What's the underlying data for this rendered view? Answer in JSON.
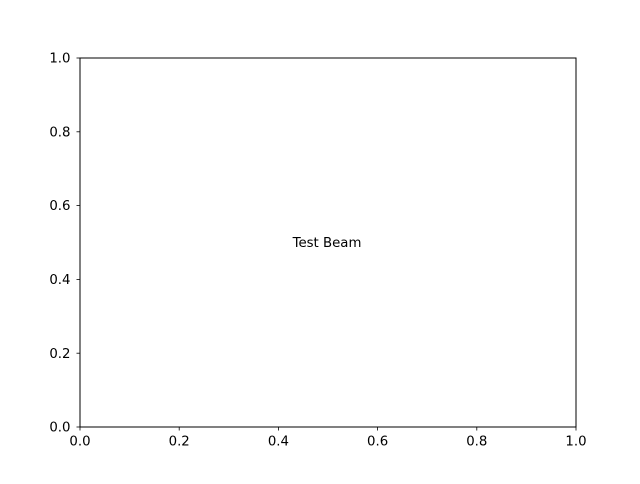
{
  "chart_data": {
    "type": "scatter",
    "title": "",
    "xlabel": "",
    "ylabel": "",
    "xlim": [
      0,
      1
    ],
    "ylim": [
      0,
      1
    ],
    "x_ticks": [
      0.0,
      0.2,
      0.4,
      0.6,
      0.8,
      1.0
    ],
    "y_ticks": [
      0.0,
      0.2,
      0.4,
      0.6,
      0.8,
      1.0
    ],
    "x_tick_labels": [
      "0.0",
      "0.2",
      "0.4",
      "0.6",
      "0.8",
      "1.0"
    ],
    "y_tick_labels": [
      "0.0",
      "0.2",
      "0.4",
      "0.6",
      "0.8",
      "1.0"
    ],
    "grid": false,
    "series": [],
    "annotations": [
      {
        "text": "Test Beam",
        "x": 0.5,
        "y": 0.5,
        "align": "center"
      }
    ],
    "colors": {
      "axes": "#000000",
      "background": "#ffffff"
    }
  }
}
